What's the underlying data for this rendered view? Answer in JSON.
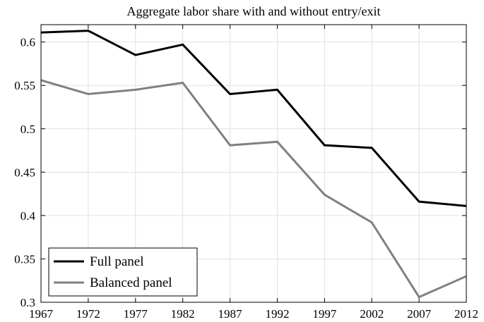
{
  "chart_data": {
    "type": "line",
    "title": "Aggregate labor share with and without entry/exit",
    "x": [
      1967,
      1972,
      1977,
      1982,
      1987,
      1992,
      1997,
      2002,
      2007,
      2012
    ],
    "series": [
      {
        "name": "Full panel",
        "color": "#000000",
        "values": [
          0.611,
          0.613,
          0.585,
          0.597,
          0.54,
          0.545,
          0.481,
          0.478,
          0.416,
          0.411
        ]
      },
      {
        "name": "Balanced panel",
        "color": "#808080",
        "values": [
          0.556,
          0.54,
          0.545,
          0.553,
          0.481,
          0.485,
          0.424,
          0.392,
          0.306,
          0.33
        ]
      }
    ],
    "xlim": [
      1967,
      2012
    ],
    "xticks": [
      1967,
      1972,
      1977,
      1982,
      1987,
      1992,
      1997,
      2002,
      2007,
      2012
    ],
    "ylim": [
      0.3,
      0.62
    ],
    "yticks": [
      0.3,
      0.35,
      0.4,
      0.45,
      0.5,
      0.55,
      0.6
    ],
    "grid": true,
    "legend": "lower-left"
  }
}
